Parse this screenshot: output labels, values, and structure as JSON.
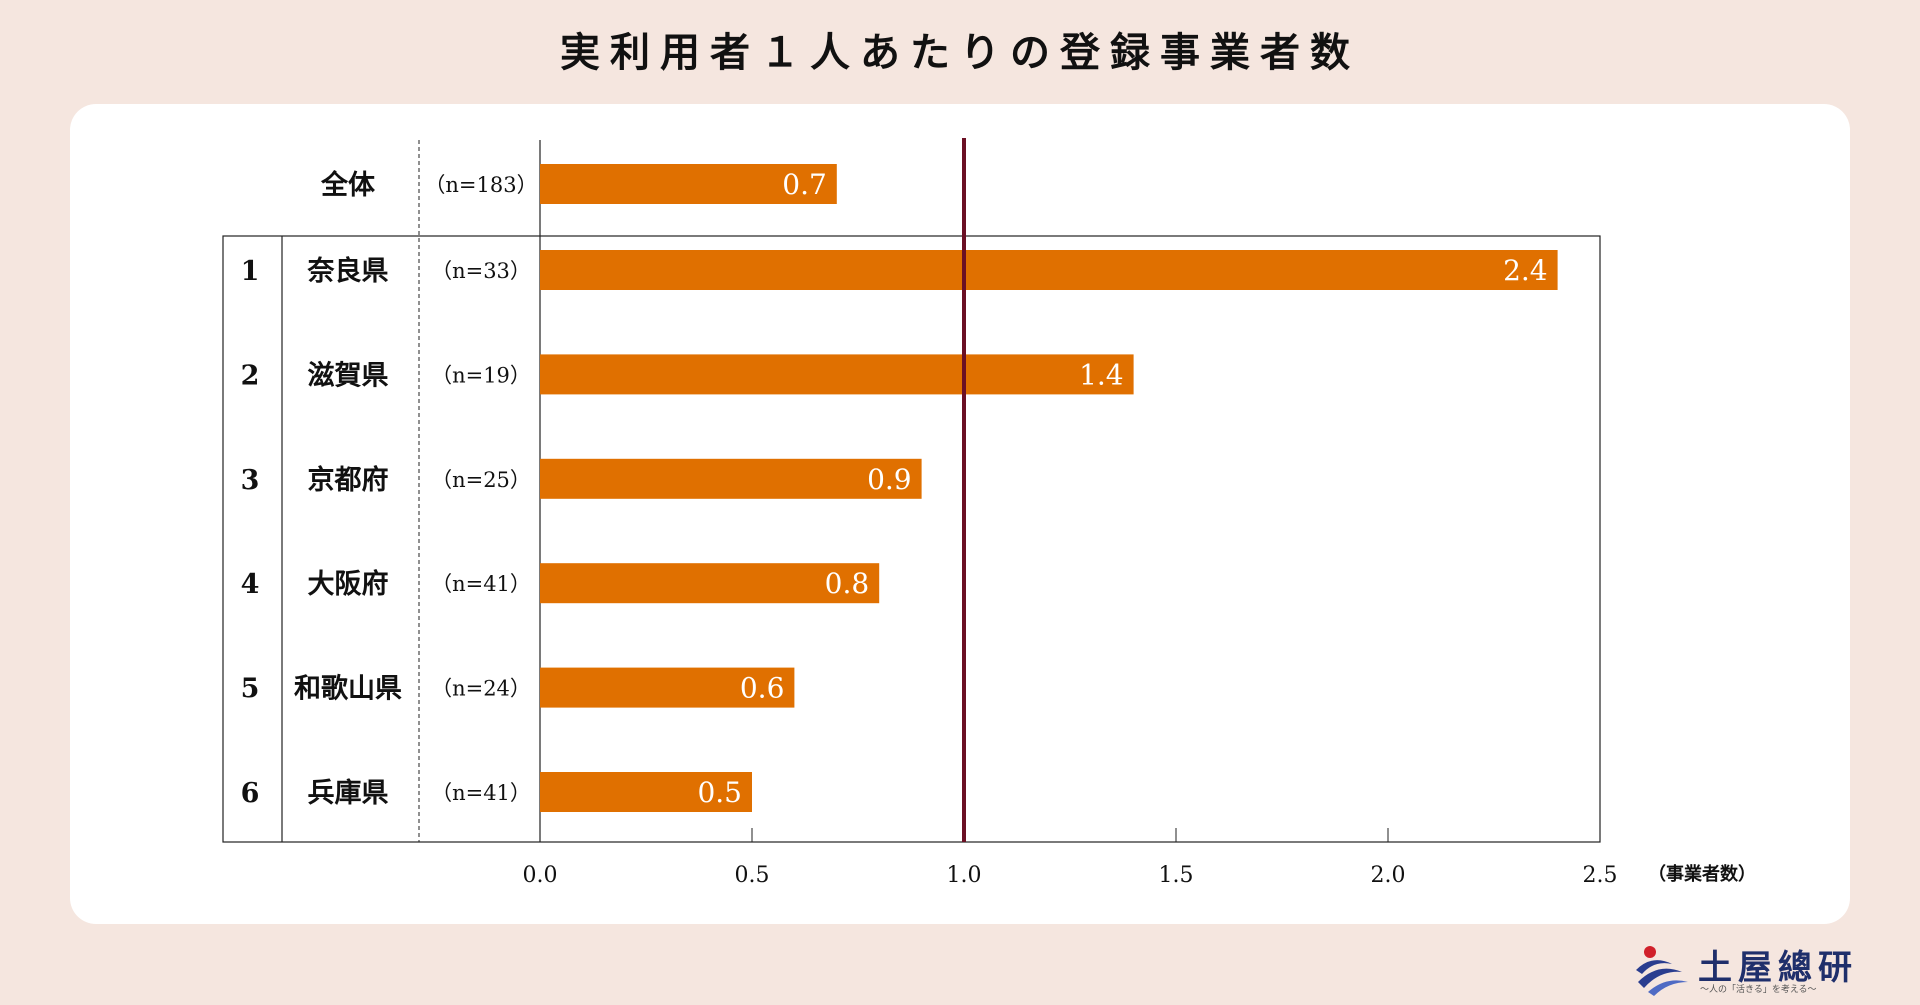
{
  "title": "実利用者１人あたりの登録事業者数",
  "logo": {
    "name": "土屋總研",
    "tagline": "〜人の「活きる」を考える〜"
  },
  "colors": {
    "bar": "#e07000",
    "reference_line": "#6b1024",
    "background": "#f5e6df",
    "card": "#ffffff"
  },
  "chart_data": {
    "type": "bar",
    "orientation": "horizontal",
    "title": "実利用者１人あたりの登録事業者数",
    "xlabel": "（事業者数）",
    "xlim": [
      0,
      2.5
    ],
    "xticks": [
      "0.0",
      "0.5",
      "1.0",
      "1.5",
      "2.0",
      "2.5"
    ],
    "reference_line": 1.0,
    "overall": {
      "label": "全体",
      "n": "（n=183）",
      "value": 0.7,
      "value_label": "0.7"
    },
    "rows": [
      {
        "rank": "1",
        "label": "奈良県",
        "n": "（n=33）",
        "value": 2.4,
        "value_label": "2.4"
      },
      {
        "rank": "2",
        "label": "滋賀県",
        "n": "（n=19）",
        "value": 1.4,
        "value_label": "1.4"
      },
      {
        "rank": "3",
        "label": "京都府",
        "n": "（n=25）",
        "value": 0.9,
        "value_label": "0.9"
      },
      {
        "rank": "4",
        "label": "大阪府",
        "n": "（n=41）",
        "value": 0.8,
        "value_label": "0.8"
      },
      {
        "rank": "5",
        "label": "和歌山県",
        "n": "（n=24）",
        "value": 0.6,
        "value_label": "0.6"
      },
      {
        "rank": "6",
        "label": "兵庫県",
        "n": "（n=41）",
        "value": 0.5,
        "value_label": "0.5"
      }
    ]
  }
}
